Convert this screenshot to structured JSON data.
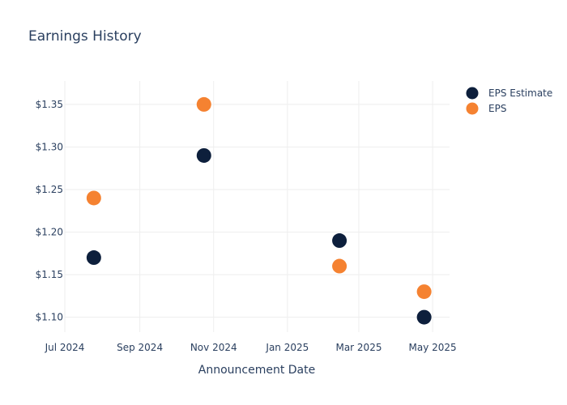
{
  "chart_data": {
    "type": "scatter",
    "title": "Earnings History",
    "xlabel": "Announcement Date",
    "ylabel": "",
    "x_ticks": [
      {
        "date": "2024-07-01",
        "label": "Jul 2024"
      },
      {
        "date": "2024-09-01",
        "label": "Sep 2024"
      },
      {
        "date": "2024-11-01",
        "label": "Nov 2024"
      },
      {
        "date": "2025-01-01",
        "label": "Jan 2025"
      },
      {
        "date": "2025-03-01",
        "label": "Mar 2025"
      },
      {
        "date": "2025-05-01",
        "label": "May 2025"
      }
    ],
    "xlim": [
      "2024-07-01",
      "2025-05-15"
    ],
    "y_ticks": [
      {
        "value": 1.1,
        "label": "$1.10"
      },
      {
        "value": 1.15,
        "label": "$1.15"
      },
      {
        "value": 1.2,
        "label": "$1.20"
      },
      {
        "value": 1.25,
        "label": "$1.25"
      },
      {
        "value": 1.3,
        "label": "$1.30"
      },
      {
        "value": 1.35,
        "label": "$1.35"
      }
    ],
    "ylim": [
      1.0825,
      1.3775
    ],
    "grid": true,
    "legend_position": "top-right",
    "series": [
      {
        "name": "EPS Estimate",
        "color": "#0d1f3c",
        "points": [
          {
            "x": "2024-07-25",
            "y": 1.17
          },
          {
            "x": "2024-10-24",
            "y": 1.29
          },
          {
            "x": "2025-02-13",
            "y": 1.19
          },
          {
            "x": "2025-04-24",
            "y": 1.1
          }
        ]
      },
      {
        "name": "EPS",
        "color": "#f58231",
        "points": [
          {
            "x": "2024-07-25",
            "y": 1.24
          },
          {
            "x": "2024-10-24",
            "y": 1.35
          },
          {
            "x": "2025-02-13",
            "y": 1.16
          },
          {
            "x": "2025-04-24",
            "y": 1.13
          }
        ]
      }
    ]
  }
}
